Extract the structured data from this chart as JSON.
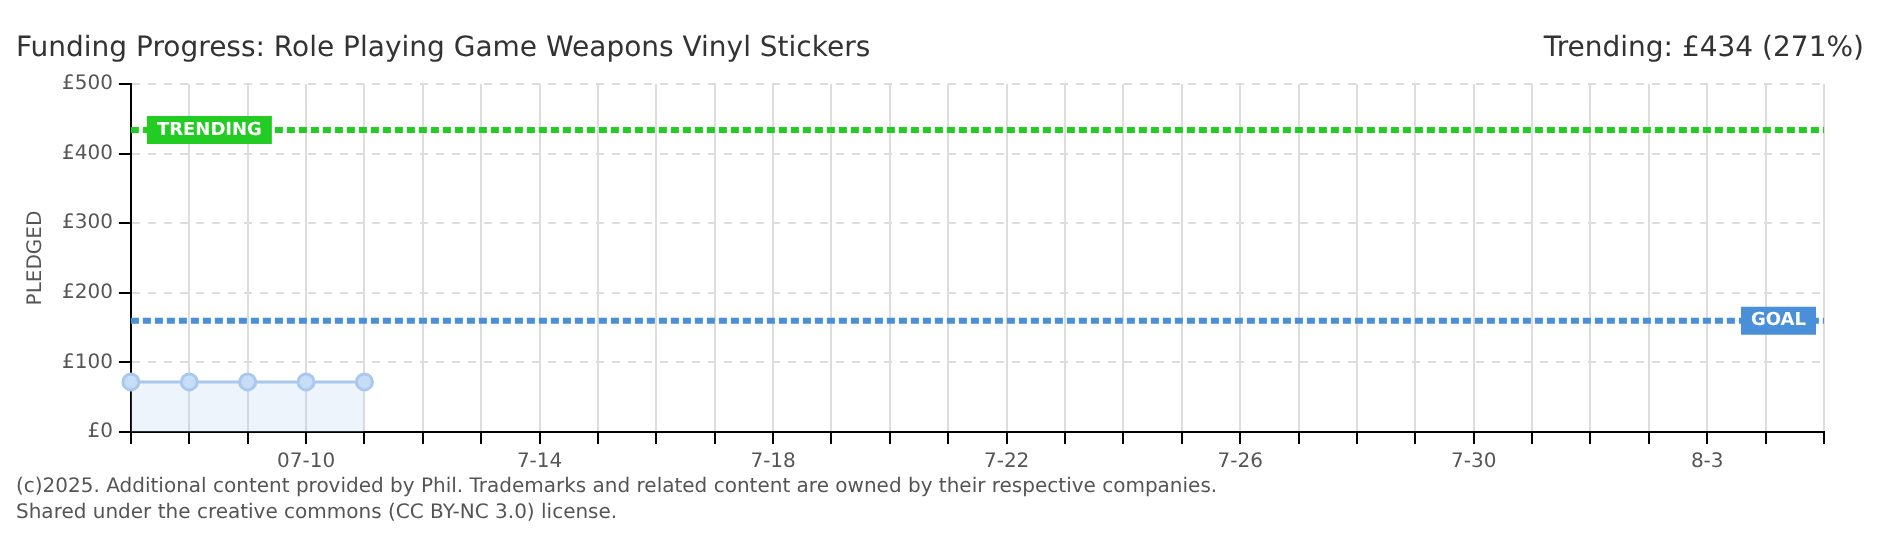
{
  "chart_data": {
    "type": "area",
    "title": "Funding Progress: Role Playing Game Weapons Vinyl Stickers",
    "subtitle": "Trending: £434 (271%)",
    "ylabel": "PLEDGED",
    "categories": [
      null,
      null,
      null,
      "07-10",
      null,
      null,
      null,
      "7-14",
      null,
      null,
      null,
      "7-18",
      null,
      null,
      null,
      "7-22",
      null,
      null,
      null,
      "7-26",
      null,
      null,
      null,
      "7-30",
      null,
      null,
      null,
      "8-3",
      null,
      null
    ],
    "series": [
      {
        "color": "#a9c8ee",
        "values": [
          72,
          72,
          72,
          72,
          72,
          null,
          null,
          null,
          null,
          null,
          null,
          null,
          null,
          null,
          null,
          null,
          null,
          null,
          null,
          null,
          null,
          null,
          null,
          null,
          null,
          null,
          null,
          null,
          null,
          null
        ]
      }
    ],
    "ylim": [
      0,
      500
    ],
    "yticks": [
      {
        "value": 0,
        "label": "£0"
      },
      {
        "value": 100,
        "label": "£100"
      },
      {
        "value": 200,
        "label": "£200"
      },
      {
        "value": 300,
        "label": "£300"
      },
      {
        "value": 400,
        "label": "£400"
      },
      {
        "value": 500,
        "label": "£500"
      }
    ],
    "ref_lines": [
      {
        "axis": "y",
        "value": 434,
        "label": "TRENDING",
        "color": "#22cc22",
        "line_style": "dashed"
      },
      {
        "axis": "y",
        "value": 160,
        "label": "GOAL",
        "color": "#4a90d9",
        "line_style": "dashed"
      }
    ],
    "grid": true,
    "marker": "circle",
    "legend": false,
    "annotations": [
      "(c)2025. Additional content provided by Phil. Trademarks and related content are owned by their respective companies.",
      "Shared under the creative commons (CC BY-NC 3.0) license."
    ]
  }
}
